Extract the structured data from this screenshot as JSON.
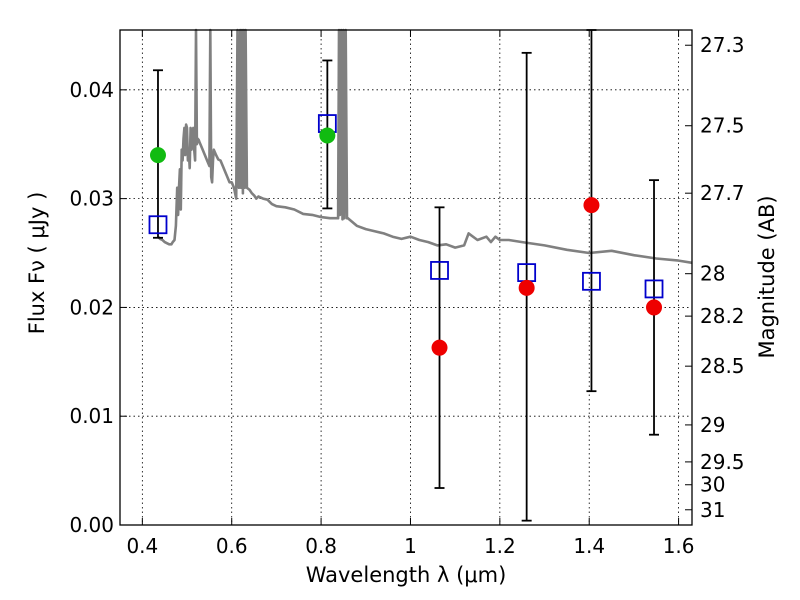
{
  "chart_data": {
    "type": "scatter",
    "title": "",
    "xlabel": "Wavelength  λ (μm)",
    "ylabel": "Flux  Fν  ( μJy )",
    "y2label": "Magnitude (AB)",
    "xlim": [
      0.35,
      1.63
    ],
    "ylim": [
      0.0,
      0.0455
    ],
    "grid": true,
    "x_ticks": [
      0.4,
      0.6,
      0.8,
      1.0,
      1.2,
      1.4,
      1.6
    ],
    "x_tick_labels": [
      "0.4",
      "0.6",
      "0.8",
      "1",
      "1.2",
      "1.4",
      "1.6"
    ],
    "y_ticks": [
      0.0,
      0.01,
      0.02,
      0.03,
      0.04
    ],
    "y_tick_labels": [
      "0.00",
      "0.01",
      "0.02",
      "0.03",
      "0.04"
    ],
    "y2_ticks": [
      {
        "label": "27.3",
        "flux": 0.0441
      },
      {
        "label": "27.5",
        "flux": 0.0367
      },
      {
        "label": "27.7",
        "flux": 0.0305
      },
      {
        "label": "28",
        "flux": 0.0231
      },
      {
        "label": "28.2",
        "flux": 0.0192
      },
      {
        "label": "28.5",
        "flux": 0.0146
      },
      {
        "label": "29",
        "flux": 0.0092
      },
      {
        "label": "29.5",
        "flux": 0.0058
      },
      {
        "label": "30",
        "flux": 0.0037
      },
      {
        "label": "31",
        "flux": 0.0014
      }
    ],
    "series": [
      {
        "kind": "model_spectrum",
        "color": "#808080",
        "x": [
          0.435,
          0.44,
          0.445,
          0.45,
          0.455,
          0.46,
          0.465,
          0.468,
          0.472,
          0.475,
          0.478,
          0.48,
          0.482,
          0.484,
          0.486,
          0.488,
          0.49,
          0.492,
          0.494,
          0.496,
          0.498,
          0.5,
          0.502,
          0.504,
          0.506,
          0.508,
          0.51,
          0.512,
          0.514,
          0.516,
          0.518,
          0.52,
          0.522,
          0.524,
          0.526,
          0.528,
          0.53,
          0.535,
          0.54,
          0.545,
          0.55,
          0.552,
          0.554,
          0.556,
          0.558,
          0.56,
          0.565,
          0.57,
          0.575,
          0.58,
          0.585,
          0.59,
          0.595,
          0.6,
          0.605,
          0.61,
          0.613,
          0.616,
          0.619,
          0.621,
          0.623,
          0.625,
          0.627,
          0.629,
          0.631,
          0.634,
          0.64,
          0.645,
          0.65,
          0.655,
          0.66,
          0.67,
          0.68,
          0.69,
          0.7,
          0.72,
          0.74,
          0.76,
          0.78,
          0.8,
          0.82,
          0.838,
          0.84,
          0.842,
          0.845,
          0.848,
          0.85,
          0.852,
          0.855,
          0.858,
          0.86,
          0.88,
          0.9,
          0.92,
          0.94,
          0.96,
          0.98,
          1.0,
          1.02,
          1.04,
          1.06,
          1.08,
          1.1,
          1.12,
          1.13,
          1.15,
          1.17,
          1.18,
          1.19,
          1.2,
          1.22,
          1.25,
          1.3,
          1.35,
          1.4,
          1.45,
          1.5,
          1.55,
          1.6,
          1.63
        ],
        "y": [
          0.0265,
          0.0263,
          0.0262,
          0.026,
          0.0259,
          0.0258,
          0.0258,
          0.026,
          0.0262,
          0.0275,
          0.031,
          0.0285,
          0.031,
          0.0327,
          0.029,
          0.0345,
          0.0335,
          0.0355,
          0.0365,
          0.034,
          0.0368,
          0.0365,
          0.0335,
          0.0345,
          0.0328,
          0.0365,
          0.0345,
          0.0357,
          0.0365,
          0.0345,
          0.0335,
          0.0455,
          0.035,
          0.0355,
          0.0354,
          0.0352,
          0.035,
          0.0345,
          0.034,
          0.0335,
          0.033,
          0.0455,
          0.032,
          0.0315,
          0.0335,
          0.0345,
          0.034,
          0.0336,
          0.0335,
          0.033,
          0.0325,
          0.032,
          0.0315,
          0.0315,
          0.031,
          0.03,
          0.0455,
          0.031,
          0.0455,
          0.031,
          0.0455,
          0.0305,
          0.0455,
          0.031,
          0.0455,
          0.031,
          0.0308,
          0.0305,
          0.0303,
          0.03,
          0.0302,
          0.03,
          0.0299,
          0.0295,
          0.0293,
          0.0292,
          0.029,
          0.0286,
          0.0285,
          0.0283,
          0.0282,
          0.0282,
          0.0455,
          0.0285,
          0.0455,
          0.0281,
          0.0455,
          0.0282,
          0.0455,
          0.0282,
          0.0282,
          0.0275,
          0.0272,
          0.027,
          0.0268,
          0.0265,
          0.0263,
          0.0265,
          0.0262,
          0.026,
          0.0257,
          0.0258,
          0.0255,
          0.0257,
          0.0268,
          0.0262,
          0.0265,
          0.026,
          0.0265,
          0.0262,
          0.0262,
          0.026,
          0.0257,
          0.0253,
          0.025,
          0.0252,
          0.0248,
          0.0245,
          0.0243,
          0.0241
        ]
      },
      {
        "kind": "model_photometry",
        "marker": "open-square",
        "color": "#0000cc",
        "x": [
          0.435,
          0.814,
          1.065,
          1.26,
          1.405,
          1.545
        ],
        "y": [
          0.0276,
          0.0369,
          0.0234,
          0.0232,
          0.0224,
          0.0217
        ]
      },
      {
        "kind": "observed_detections",
        "marker": "filled-circle",
        "color": "#11bb11",
        "x": [
          0.435,
          0.814
        ],
        "y": [
          0.034,
          0.0358
        ],
        "yerr_low": [
          0.0264,
          0.0291
        ],
        "yerr_high": [
          0.0418,
          0.0427
        ]
      },
      {
        "kind": "observed_upper_limits",
        "marker": "filled-circle",
        "color": "#ee0000",
        "x": [
          1.065,
          1.26,
          1.405,
          1.545
        ],
        "y": [
          0.0163,
          0.0218,
          0.0294,
          0.02
        ],
        "yerr_low": [
          0.0034,
          0.0004,
          0.0123,
          0.0083
        ],
        "yerr_high": [
          0.0292,
          0.0434,
          0.0455,
          0.0317
        ]
      }
    ]
  }
}
